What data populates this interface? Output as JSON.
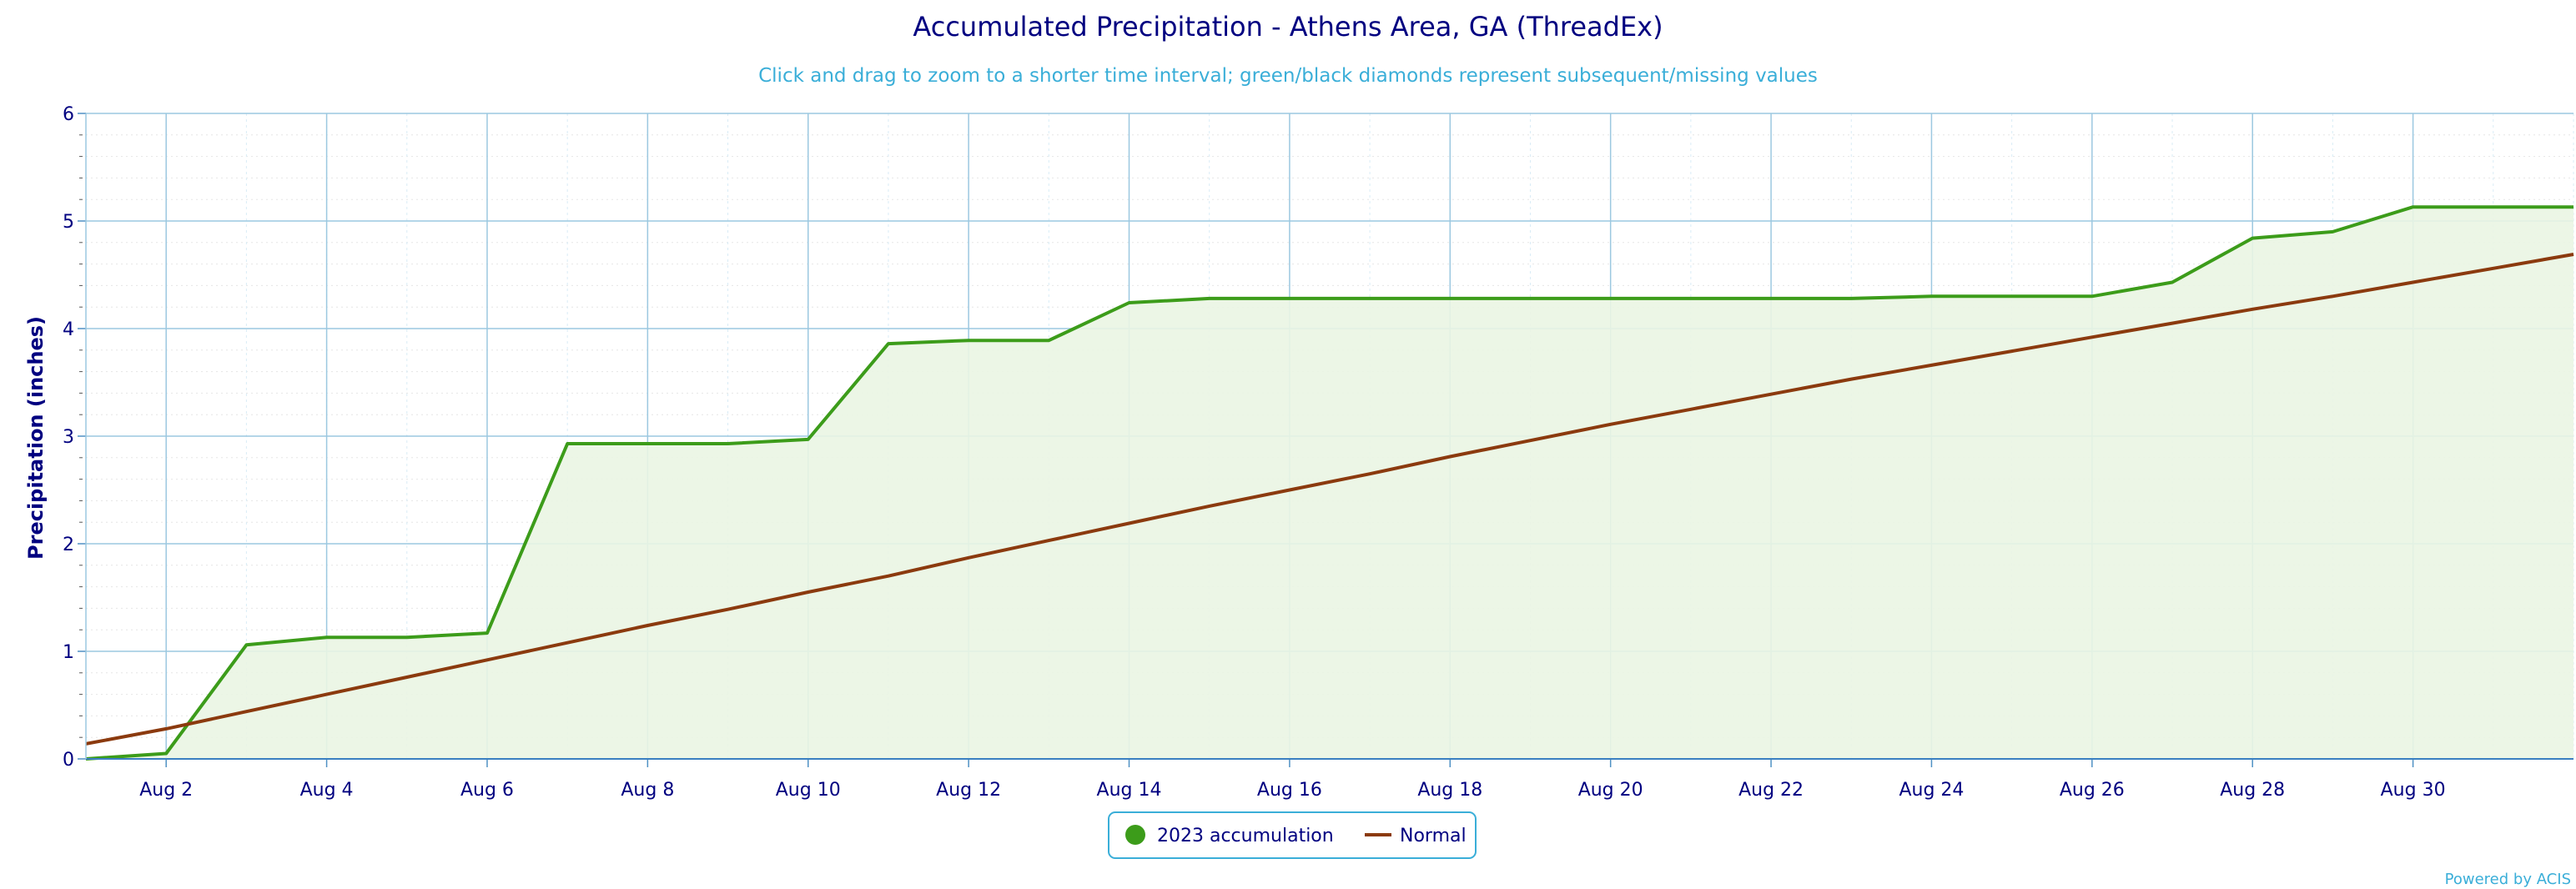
{
  "chart_data": {
    "type": "line",
    "title": "Accumulated Precipitation - Athens Area, GA (ThreadEx)",
    "subtitle": "Click and drag to zoom to a shorter time interval; green/black diamonds represent subsequent/missing values",
    "ylabel": "Precipitation (inches)",
    "xlabel": "",
    "ylim": [
      0,
      6
    ],
    "xlim": [
      1,
      32
    ],
    "yticks": [
      0,
      1,
      2,
      3,
      4,
      5,
      6
    ],
    "xticks": [
      {
        "day": 2,
        "label": "Aug 2"
      },
      {
        "day": 4,
        "label": "Aug 4"
      },
      {
        "day": 6,
        "label": "Aug 6"
      },
      {
        "day": 8,
        "label": "Aug 8"
      },
      {
        "day": 10,
        "label": "Aug 10"
      },
      {
        "day": 12,
        "label": "Aug 12"
      },
      {
        "day": 14,
        "label": "Aug 14"
      },
      {
        "day": 16,
        "label": "Aug 16"
      },
      {
        "day": 18,
        "label": "Aug 18"
      },
      {
        "day": 20,
        "label": "Aug 20"
      },
      {
        "day": 22,
        "label": "Aug 22"
      },
      {
        "day": 24,
        "label": "Aug 24"
      },
      {
        "day": 26,
        "label": "Aug 26"
      },
      {
        "day": 28,
        "label": "Aug 28"
      },
      {
        "day": 30,
        "label": "Aug 30"
      }
    ],
    "grid": true,
    "legend_position": "bottom-center",
    "series": [
      {
        "name": "2023 accumulation",
        "color": "#3c9c1a",
        "fill": "#eaf5e3",
        "x": [
          1,
          2,
          3,
          4,
          5,
          6,
          7,
          8,
          9,
          10,
          11,
          12,
          13,
          14,
          15,
          16,
          17,
          18,
          19,
          20,
          21,
          22,
          23,
          24,
          25,
          26,
          27,
          28,
          29,
          30,
          31
        ],
        "values": [
          0.0,
          0.05,
          1.06,
          1.13,
          1.13,
          1.17,
          2.93,
          2.93,
          2.93,
          2.97,
          3.86,
          3.89,
          3.89,
          4.24,
          4.28,
          4.28,
          4.28,
          4.28,
          4.28,
          4.28,
          4.28,
          4.28,
          4.28,
          4.3,
          4.3,
          4.3,
          4.43,
          4.84,
          4.9,
          5.13,
          5.13
        ]
      },
      {
        "name": "Normal",
        "color": "#8b3a0e",
        "x": [
          1,
          2,
          3,
          4,
          5,
          6,
          7,
          8,
          9,
          10,
          11,
          12,
          13,
          14,
          15,
          16,
          17,
          18,
          19,
          20,
          21,
          22,
          23,
          24,
          25,
          26,
          27,
          28,
          29,
          30,
          31
        ],
        "values": [
          0.14,
          0.28,
          0.44,
          0.6,
          0.76,
          0.92,
          1.08,
          1.24,
          1.39,
          1.55,
          1.7,
          1.87,
          2.03,
          2.19,
          2.35,
          2.5,
          2.65,
          2.81,
          2.96,
          3.11,
          3.25,
          3.39,
          3.53,
          3.66,
          3.79,
          3.92,
          4.05,
          4.18,
          4.3,
          4.43,
          4.56
        ]
      }
    ],
    "credit": "Powered by ACIS"
  }
}
